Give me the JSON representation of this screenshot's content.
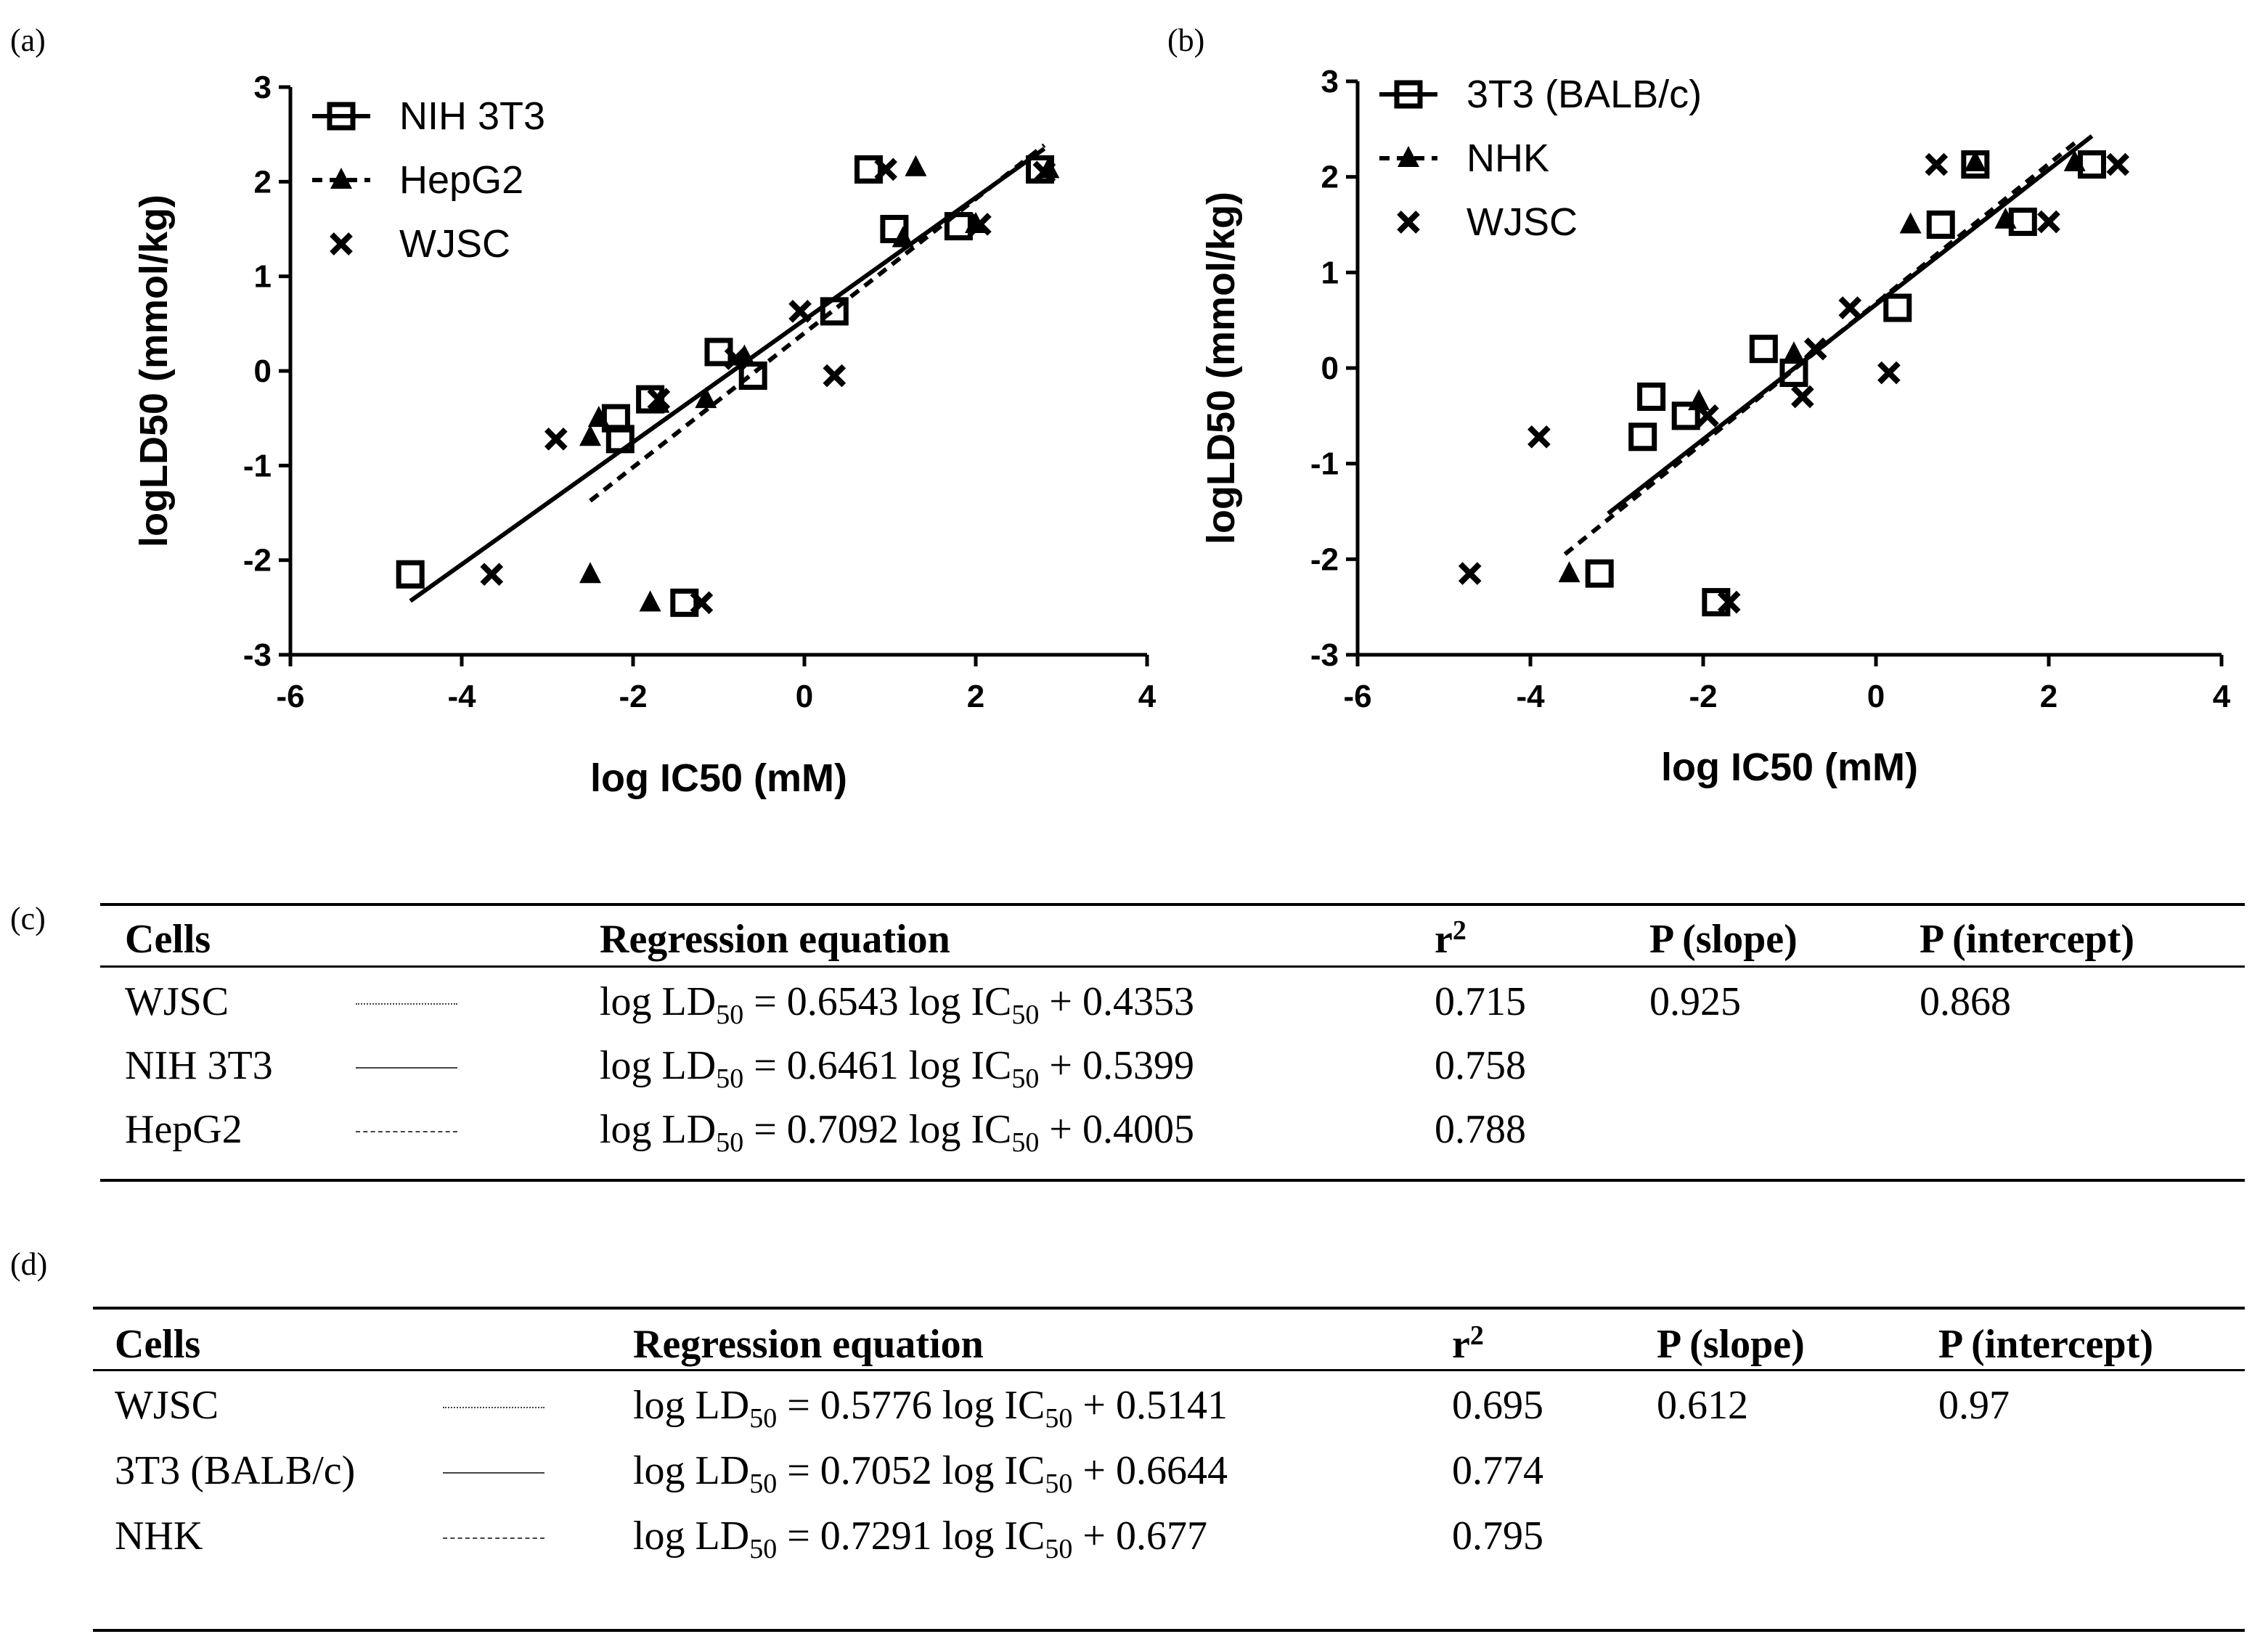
{
  "chart_data": [
    {
      "type": "scatter",
      "panel_label": "(a)",
      "xlabel": "log IC50 (mM)",
      "ylabel": "logLD50 (mmol/kg)",
      "xlim": [
        -6,
        4
      ],
      "ylim": [
        -3,
        3
      ],
      "xticks": [
        -6,
        -4,
        -2,
        0,
        2,
        4
      ],
      "yticks": [
        -3,
        -2,
        -1,
        0,
        1,
        2,
        3
      ],
      "legend_position": "top-left",
      "series": [
        {
          "name": "NIH 3T3",
          "marker": "square",
          "line": "solid",
          "fit": {
            "slope": 0.6461,
            "intercept": 0.5399,
            "xrange": [
              -4.6,
              2.8
            ]
          },
          "points": [
            [
              -4.6,
              -2.15
            ],
            [
              -2.2,
              -0.5
            ],
            [
              -2.15,
              -0.72
            ],
            [
              -1.8,
              -0.3
            ],
            [
              -1.4,
              -2.45
            ],
            [
              -1.0,
              0.2
            ],
            [
              -0.6,
              -0.05
            ],
            [
              0.35,
              0.63
            ],
            [
              0.75,
              2.13
            ],
            [
              1.05,
              1.5
            ],
            [
              1.8,
              1.53
            ],
            [
              2.75,
              2.13
            ]
          ]
        },
        {
          "name": "HepG2",
          "marker": "triangle",
          "line": "dashed",
          "fit": {
            "slope": 0.7092,
            "intercept": 0.4005,
            "xrange": [
              -2.5,
              2.8
            ]
          },
          "points": [
            [
              -2.5,
              -2.15
            ],
            [
              -2.5,
              -0.7
            ],
            [
              -2.4,
              -0.5
            ],
            [
              -1.8,
              -2.45
            ],
            [
              -1.7,
              -0.35
            ],
            [
              -1.15,
              -0.3
            ],
            [
              -0.7,
              0.15
            ],
            [
              1.15,
              1.4
            ],
            [
              1.3,
              2.15
            ],
            [
              2.0,
              1.55
            ],
            [
              2.85,
              2.13
            ]
          ]
        },
        {
          "name": "WJSC",
          "marker": "cross",
          "line": "dotted",
          "fit": {
            "slope": 0.6543,
            "intercept": 0.4353,
            "xrange": [
              -4.6,
              2.8
            ]
          },
          "points": [
            [
              -3.65,
              -2.15
            ],
            [
              -2.9,
              -0.72
            ],
            [
              -1.7,
              -0.3
            ],
            [
              -1.2,
              -2.45
            ],
            [
              -0.8,
              0.13
            ],
            [
              -0.05,
              0.63
            ],
            [
              0.35,
              -0.05
            ],
            [
              0.95,
              2.13
            ],
            [
              2.05,
              1.55
            ],
            [
              2.8,
              2.1
            ]
          ]
        }
      ]
    },
    {
      "type": "scatter",
      "panel_label": "(b)",
      "xlabel": "log IC50 (mM)",
      "ylabel": "logLD50 (mmol/kg)",
      "xlim": [
        -6,
        4
      ],
      "ylim": [
        -3,
        3
      ],
      "xticks": [
        -6,
        -4,
        -2,
        0,
        2,
        4
      ],
      "yticks": [
        -3,
        -2,
        -1,
        0,
        1,
        2,
        3
      ],
      "legend_position": "top-left",
      "series": [
        {
          "name": "3T3 (BALB/c)",
          "marker": "square",
          "line": "solid",
          "fit": {
            "slope": 0.7052,
            "intercept": 0.6644,
            "xrange": [
              -3.1,
              2.5
            ]
          },
          "points": [
            [
              -3.2,
              -2.15
            ],
            [
              -2.7,
              -0.72
            ],
            [
              -2.6,
              -0.3
            ],
            [
              -2.2,
              -0.5
            ],
            [
              -1.85,
              -2.45
            ],
            [
              -1.3,
              0.2
            ],
            [
              -0.95,
              -0.05
            ],
            [
              0.25,
              0.63
            ],
            [
              0.75,
              1.5
            ],
            [
              1.15,
              2.13
            ],
            [
              1.7,
              1.53
            ],
            [
              2.5,
              2.13
            ]
          ]
        },
        {
          "name": "NHK",
          "marker": "triangle",
          "line": "dashed",
          "fit": {
            "slope": 0.7291,
            "intercept": 0.677,
            "xrange": [
              -3.6,
              2.3
            ]
          },
          "points": [
            [
              -3.55,
              -2.15
            ],
            [
              -2.05,
              -0.35
            ],
            [
              -0.95,
              0.15
            ],
            [
              0.4,
              1.5
            ],
            [
              1.15,
              2.15
            ],
            [
              1.5,
              1.55
            ],
            [
              2.3,
              2.15
            ]
          ]
        },
        {
          "name": "WJSC",
          "marker": "cross",
          "line": "dotted",
          "fit": {
            "slope": 0.5776,
            "intercept": 0.5141,
            "xrange": [
              -3.6,
              2.5
            ]
          },
          "points": [
            [
              -4.7,
              -2.15
            ],
            [
              -3.9,
              -0.72
            ],
            [
              -1.95,
              -0.5
            ],
            [
              -1.7,
              -2.45
            ],
            [
              -0.85,
              -0.3
            ],
            [
              -0.7,
              0.2
            ],
            [
              -0.3,
              0.63
            ],
            [
              0.15,
              -0.05
            ],
            [
              0.7,
              2.13
            ],
            [
              2.0,
              1.53
            ],
            [
              2.8,
              2.13
            ]
          ]
        }
      ]
    }
  ],
  "tables": {
    "c": {
      "panel_label": "(c)",
      "headers": {
        "cells": "Cells",
        "equation": "Regression equation",
        "r2": "r",
        "r2_sup": "2",
        "p_slope": "P (slope)",
        "p_intercept": "P (intercept)"
      },
      "rows": [
        {
          "cells": "WJSC",
          "swatch": "dotted",
          "eq_a": "log LD",
          "eq_sub1": "50",
          "eq_b": " = 0.6543 log IC",
          "eq_sub2": "50",
          "eq_c": " + 0.4353",
          "r2": "0.715",
          "p_slope": "0.925",
          "p_intercept": "0.868"
        },
        {
          "cells": "NIH 3T3",
          "swatch": "solid",
          "eq_a": "log LD",
          "eq_sub1": "50",
          "eq_b": " = 0.6461 log IC",
          "eq_sub2": "50",
          "eq_c": " + 0.5399",
          "r2": "0.758",
          "p_slope": "",
          "p_intercept": ""
        },
        {
          "cells": "HepG2",
          "swatch": "dashed",
          "eq_a": "log LD",
          "eq_sub1": "50",
          "eq_b": " = 0.7092 log IC",
          "eq_sub2": "50",
          "eq_c": " + 0.4005",
          "r2": "0.788",
          "p_slope": "",
          "p_intercept": ""
        }
      ]
    },
    "d": {
      "panel_label": "(d)",
      "headers": {
        "cells": "Cells",
        "equation": "Regression equation",
        "r2": "r",
        "r2_sup": "2",
        "p_slope": "P (slope)",
        "p_intercept": "P (intercept)"
      },
      "rows": [
        {
          "cells": "WJSC",
          "swatch": "dotted",
          "eq_a": "log LD",
          "eq_sub1": "50",
          "eq_b": " = 0.5776 log IC",
          "eq_sub2": "50",
          "eq_c": " + 0.5141",
          "r2": "0.695",
          "p_slope": "0.612",
          "p_intercept": "0.97"
        },
        {
          "cells": "3T3 (BALB/c)",
          "swatch": "solid",
          "eq_a": "log LD",
          "eq_sub1": "50",
          "eq_b": " = 0.7052 log IC",
          "eq_sub2": "50",
          "eq_c": " + 0.6644",
          "r2": "0.774",
          "p_slope": "",
          "p_intercept": ""
        },
        {
          "cells": "NHK",
          "swatch": "dashed",
          "eq_a": "log LD",
          "eq_sub1": "50",
          "eq_b": " = 0.7291 log IC",
          "eq_sub2": "50",
          "eq_c": " + 0.677",
          "r2": "0.795",
          "p_slope": "",
          "p_intercept": ""
        }
      ]
    }
  }
}
